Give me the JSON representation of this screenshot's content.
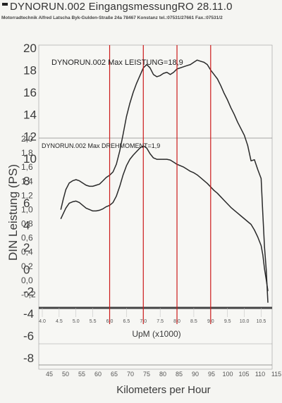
{
  "header": {
    "title": "DYNORUN.002   EingangsmessungRO   28.11.0",
    "subtitle": "Motorradtechnik Alfred Latscha   Byk-Gulden-Straße 24a 78467 Konstanz   tel.:07531/27661 Fax.:07531/2"
  },
  "chart_data": {
    "type": "line",
    "xlabel": "UpM (x1000)",
    "ylabel": "DIN Leistung (PS)",
    "x2label": "Kilometers per Hour",
    "annotations": [
      "DYNORUN.002  Max LEISTUNG=18,9",
      "DYNORUN.002  Max DREHMOMENT=1,9"
    ],
    "xlim": [
      4.0,
      10.7
    ],
    "ylim": [
      -8,
      20
    ],
    "y2lim": [
      -0.4,
      2.0
    ],
    "x_ticks": [
      "4.0",
      "4.5",
      "5.0",
      "5.5",
      "6.0",
      "6.5",
      "7.0",
      "7.5",
      "8.0",
      "8.5",
      "9.0",
      "9.5",
      "10.0",
      "10.5"
    ],
    "y_ticks": [
      "20",
      "18",
      "16",
      "14",
      "12",
      "10",
      "8",
      "6",
      "4",
      "2",
      "0",
      "-2",
      "-4",
      "-6",
      "-8"
    ],
    "y2_ticks": [
      "2,0",
      "1,8",
      "1,6",
      "1,4",
      "1,2",
      "1,0",
      "0,8",
      "0,6",
      "0,4",
      "0,2",
      "0,0",
      "-0,2"
    ],
    "speed_ticks": [
      "45",
      "50",
      "55",
      "60",
      "65",
      "70",
      "75",
      "80",
      "85",
      "90",
      "95",
      "100",
      "105",
      "110",
      "115"
    ],
    "speed_range": [
      45,
      115
    ],
    "markers_rpm": [
      6.0,
      7.0,
      8.0,
      9.0
    ],
    "colors": {
      "curve": "#2a2a2a",
      "marker": "#cc1a1a",
      "grid": "#bdbdbd",
      "frame": "#444444"
    },
    "series": [
      {
        "name": "DYNORUN.002",
        "axis": "left",
        "x": [
          4.55,
          4.62,
          4.7,
          4.8,
          4.9,
          5.0,
          5.1,
          5.2,
          5.3,
          5.4,
          5.5,
          5.6,
          5.7,
          5.8,
          5.9,
          6.0,
          6.1,
          6.2,
          6.3,
          6.4,
          6.5,
          6.6,
          6.7,
          6.8,
          6.9,
          7.0,
          7.1,
          7.2,
          7.3,
          7.4,
          7.5,
          7.6,
          7.7,
          7.8,
          7.9,
          8.0,
          8.1,
          8.2,
          8.3,
          8.4,
          8.5,
          8.6,
          8.7,
          8.8,
          8.9,
          9.0,
          9.1,
          9.2,
          9.3,
          9.4,
          9.5,
          9.6,
          9.7,
          9.8,
          9.9,
          10.0,
          10.1,
          10.2,
          10.3,
          10.4,
          10.5,
          10.55,
          10.6,
          10.65,
          10.7
        ],
        "values": [
          5.4,
          6.3,
          7.2,
          7.8,
          8.0,
          8.1,
          8.0,
          7.8,
          7.6,
          7.5,
          7.5,
          7.6,
          7.7,
          8.0,
          8.3,
          8.5,
          8.8,
          9.5,
          10.7,
          12.2,
          13.8,
          15.0,
          16.0,
          16.8,
          17.5,
          18.2,
          18.5,
          18.2,
          17.6,
          17.4,
          17.5,
          17.7,
          17.8,
          17.6,
          17.8,
          18.1,
          18.2,
          18.3,
          18.4,
          18.5,
          18.7,
          18.9,
          18.8,
          18.7,
          18.5,
          18.0,
          17.6,
          17.2,
          16.6,
          15.9,
          15.3,
          14.6,
          14.0,
          13.3,
          12.7,
          12.1,
          11.2,
          9.8,
          9.9,
          9.0,
          8.2,
          5.0,
          2.0,
          0.0,
          -3.0
        ]
      },
      {
        "name": "DYNORUN.002",
        "axis": "right",
        "x": [
          4.55,
          4.62,
          4.7,
          4.8,
          4.9,
          5.0,
          5.1,
          5.2,
          5.3,
          5.4,
          5.5,
          5.6,
          5.7,
          5.8,
          5.9,
          6.0,
          6.1,
          6.2,
          6.3,
          6.4,
          6.5,
          6.6,
          6.7,
          6.8,
          6.9,
          7.0,
          7.1,
          7.2,
          7.3,
          7.4,
          7.5,
          7.6,
          7.7,
          7.8,
          7.9,
          8.0,
          8.1,
          8.2,
          8.3,
          8.4,
          8.5,
          8.6,
          8.7,
          8.8,
          8.9,
          9.0,
          9.1,
          9.2,
          9.3,
          9.4,
          9.5,
          9.6,
          9.7,
          9.8,
          9.9,
          10.0,
          10.1,
          10.2,
          10.3,
          10.4,
          10.5,
          10.55,
          10.6,
          10.65,
          10.7
        ],
        "values": [
          0.86,
          0.93,
          1.01,
          1.08,
          1.1,
          1.11,
          1.09,
          1.05,
          1.01,
          0.99,
          0.97,
          0.97,
          0.98,
          1.0,
          1.03,
          1.05,
          1.09,
          1.18,
          1.32,
          1.48,
          1.61,
          1.7,
          1.76,
          1.81,
          1.86,
          1.89,
          1.86,
          1.78,
          1.72,
          1.7,
          1.7,
          1.7,
          1.7,
          1.69,
          1.66,
          1.63,
          1.61,
          1.59,
          1.56,
          1.53,
          1.51,
          1.48,
          1.44,
          1.4,
          1.36,
          1.31,
          1.26,
          1.22,
          1.17,
          1.12,
          1.07,
          1.02,
          0.98,
          0.94,
          0.9,
          0.86,
          0.82,
          0.78,
          0.7,
          0.6,
          0.48,
          0.35,
          0.15,
          0.0,
          -0.16
        ]
      }
    ]
  }
}
